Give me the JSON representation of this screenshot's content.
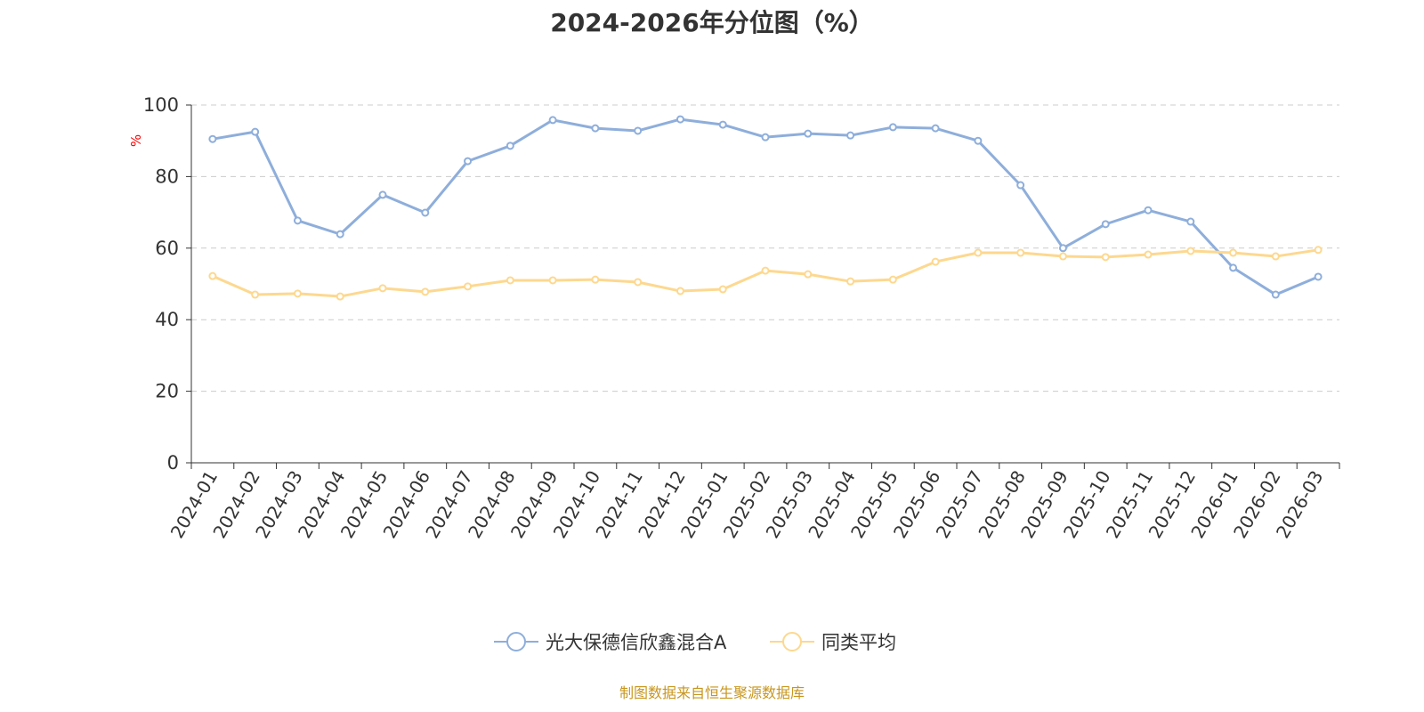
{
  "chart_data": {
    "type": "line",
    "title": "2024-2026年分位图（%）",
    "ylabel": "%",
    "ylim": [
      0,
      100
    ],
    "yticks": [
      0,
      20,
      40,
      60,
      80,
      100
    ],
    "grid": true,
    "legend_position": "bottom",
    "categories": [
      "2024-01",
      "2024-02",
      "2024-03",
      "2024-04",
      "2024-05",
      "2024-06",
      "2024-07",
      "2024-08",
      "2024-09",
      "2024-10",
      "2024-11",
      "2024-12",
      "2025-01",
      "2025-02",
      "2025-03",
      "2025-04",
      "2025-05",
      "2025-06",
      "2025-07",
      "2025-08",
      "2025-09",
      "2025-10",
      "2025-11",
      "2025-12",
      "2026-01",
      "2026-02",
      "2026-03"
    ],
    "series": [
      {
        "name": "光大保德信欣鑫混合A",
        "color": "#8eaedb",
        "values": [
          90.5,
          92.5,
          67.7,
          63.9,
          74.9,
          69.9,
          84.3,
          88.6,
          95.8,
          93.5,
          92.8,
          96.0,
          94.5,
          91.0,
          92.0,
          91.5,
          93.8,
          93.5,
          90.0,
          77.6,
          60.0,
          66.7,
          70.6,
          67.4,
          54.5,
          47.0,
          52.0
        ]
      },
      {
        "name": "同类平均",
        "color": "#fdd88f",
        "values": [
          52.2,
          47.0,
          47.3,
          46.5,
          48.8,
          47.8,
          49.3,
          51.0,
          51.0,
          51.2,
          50.5,
          48.0,
          48.5,
          53.7,
          52.7,
          50.7,
          51.2,
          56.2,
          58.7,
          58.7,
          57.7,
          57.5,
          58.2,
          59.2,
          58.7,
          57.7,
          59.5
        ]
      }
    ]
  },
  "footer": "制图数据来自恒生聚源数据库"
}
